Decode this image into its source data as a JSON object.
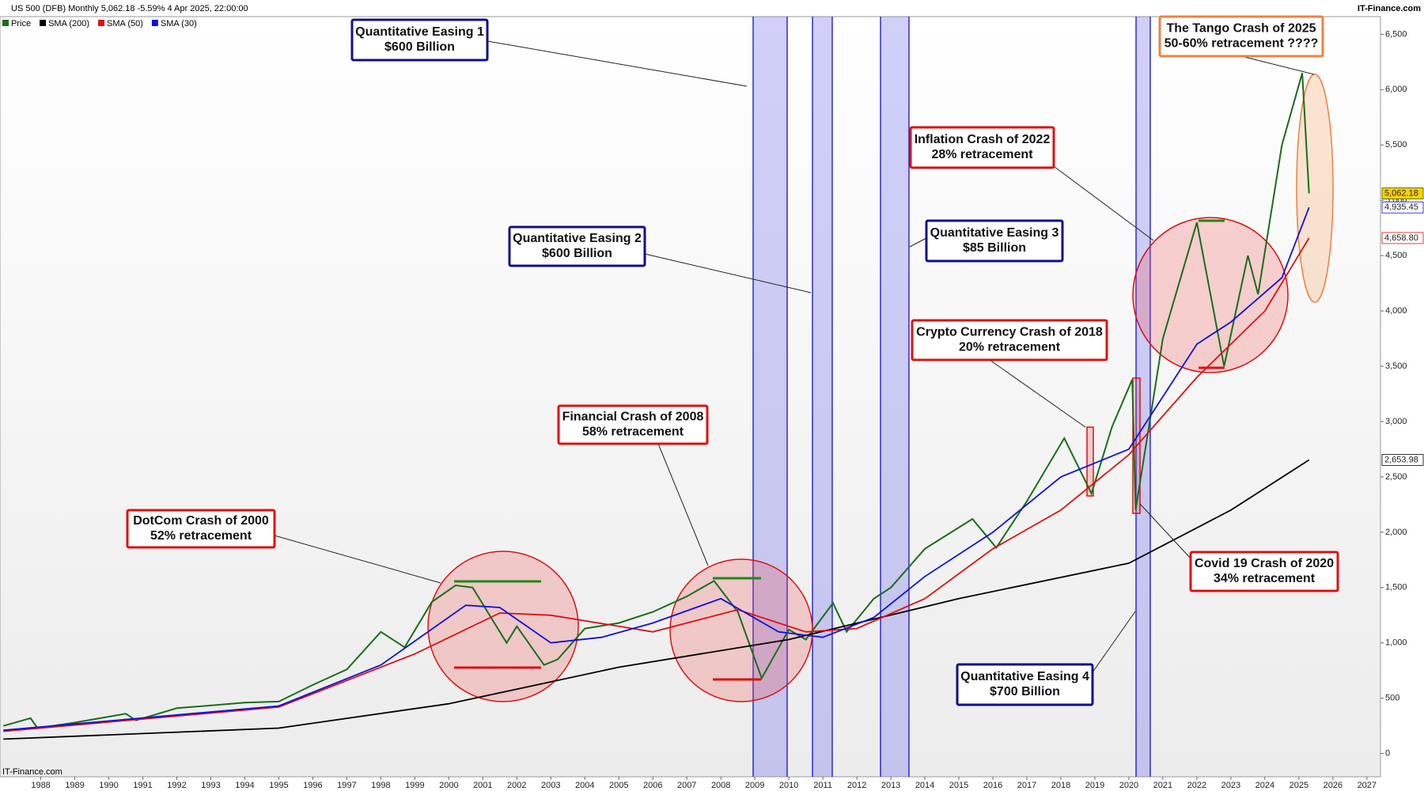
{
  "chart_data": {
    "type": "line",
    "title": "US 500 (DFB) Monthly 5,062.18 -5.59% 4 Apr 2025, 22:00:00",
    "source": "IT-Finance.com",
    "watermark": "IT-Finance.com",
    "xlim": [
      1986.8,
      2027.4
    ],
    "ylim": [
      -210,
      6660
    ],
    "xticks": [
      1988,
      1989,
      1990,
      1991,
      1992,
      1993,
      1994,
      1995,
      1996,
      1997,
      1998,
      1999,
      2000,
      2001,
      2002,
      2003,
      2004,
      2005,
      2006,
      2007,
      2008,
      2009,
      2010,
      2011,
      2012,
      2013,
      2014,
      2015,
      2016,
      2017,
      2018,
      2019,
      2020,
      2021,
      2022,
      2023,
      2024,
      2025,
      2026,
      2027
    ],
    "yticks": [
      0,
      500,
      {
        "value": 1000,
        "label": "1,000"
      },
      {
        "value": 1500,
        "label": "1,500"
      },
      {
        "value": 2000,
        "label": "2,000"
      },
      {
        "value": 2500,
        "label": "2,500"
      },
      {
        "value": 3000,
        "label": "3,000"
      },
      {
        "value": 3500,
        "label": "3,500"
      },
      {
        "value": 4000,
        "label": "4,000"
      },
      {
        "value": 4500,
        "label": "4,500"
      },
      {
        "value": 5000,
        "label": "5,000"
      },
      {
        "value": 5500,
        "label": "5,500"
      },
      {
        "value": 6000,
        "label": "6,000"
      },
      {
        "value": 6500,
        "label": "6,500"
      }
    ],
    "series": [
      {
        "name": "Price",
        "color": "#1a6e1a",
        "last_label": "5,062.18",
        "x": [
          1986.9,
          1987.7,
          1987.9,
          1989,
          1990.5,
          1990.8,
          1992,
          1994,
          1995,
          1996,
          1997,
          1998,
          1998.7,
          1999.5,
          2000.2,
          2000.7,
          2001.7,
          2002.0,
          2002.8,
          2003.2,
          2004,
          2005,
          2006,
          2007,
          2007.8,
          2008.5,
          2009.2,
          2010.0,
          2010.5,
          2011.3,
          2011.7,
          2012.5,
          2013,
          2014,
          2015.4,
          2016.1,
          2017,
          2018.1,
          2018.9,
          2019.5,
          2020.1,
          2020.2,
          2021,
          2022.0,
          2022.8,
          2023.5,
          2023.8,
          2024.5,
          2025.1,
          2025.3
        ],
        "values": [
          250,
          320,
          230,
          280,
          360,
          300,
          410,
          460,
          470,
          620,
          760,
          1100,
          960,
          1370,
          1520,
          1500,
          1000,
          1150,
          800,
          850,
          1130,
          1180,
          1280,
          1420,
          1560,
          1280,
          680,
          1120,
          1030,
          1360,
          1100,
          1400,
          1500,
          1850,
          2120,
          1860,
          2280,
          2850,
          2350,
          2950,
          3380,
          2200,
          3750,
          4800,
          3500,
          4500,
          4150,
          5500,
          6150,
          5062.18
        ]
      },
      {
        "name": "SMA (200)",
        "color": "#000000",
        "last_label": "2,653.98",
        "x": [
          1986.9,
          1995,
          2000,
          2005,
          2010,
          2015,
          2020,
          2023,
          2025.3
        ],
        "values": [
          130,
          230,
          450,
          780,
          1030,
          1400,
          1720,
          2200,
          2653.98
        ]
      },
      {
        "name": "SMA (50)",
        "color": "#e01010",
        "last_label": "4,658.80",
        "x": [
          1986.9,
          1995,
          1999,
          2001.5,
          2003,
          2006,
          2008.5,
          2010.5,
          2012,
          2014,
          2016,
          2018,
          2020,
          2022,
          2024,
          2025.3
        ],
        "values": [
          200,
          420,
          900,
          1270,
          1250,
          1100,
          1300,
          1100,
          1130,
          1400,
          1850,
          2200,
          2700,
          3400,
          4000,
          4658.8
        ]
      },
      {
        "name": "SMA (30)",
        "color": "#1010e0",
        "last_label": "4,935.45",
        "x": [
          1986.9,
          1995,
          1998,
          2000.5,
          2001.5,
          2003,
          2004.5,
          2006,
          2008,
          2009.7,
          2011,
          2012.5,
          2014,
          2016,
          2018,
          2020,
          2022,
          2023,
          2024.5,
          2025.3
        ],
        "values": [
          210,
          430,
          800,
          1340,
          1320,
          1000,
          1050,
          1180,
          1400,
          1100,
          1050,
          1230,
          1600,
          2000,
          2500,
          2750,
          3700,
          3900,
          4300,
          4935.45
        ]
      }
    ],
    "annotations": [
      {
        "lines": [
          "Quantitative Easing 1",
          "$600 Billion"
        ]
      },
      {
        "lines": [
          "Quantitative Easing 2",
          "$600 Billion"
        ]
      },
      {
        "lines": [
          "Quantitative Easing 3",
          "$85 Billion"
        ]
      },
      {
        "lines": [
          "Quantitative Easing 4",
          "$700 Billion"
        ]
      },
      {
        "lines": [
          "DotCom Crash of 2000",
          "52% retracement"
        ]
      },
      {
        "lines": [
          "Financial Crash of 2008",
          "58% retracement"
        ]
      },
      {
        "lines": [
          "Inflation Crash of 2022",
          "28% retracement"
        ]
      },
      {
        "lines": [
          "Crypto Currency Crash of 2018",
          "20% retracement"
        ]
      },
      {
        "lines": [
          "Covid 19 Crash of 2020",
          "34% retracement"
        ]
      },
      {
        "lines": [
          "The Tango Crash of 2025",
          "50-60% retracement ????"
        ]
      }
    ]
  }
}
